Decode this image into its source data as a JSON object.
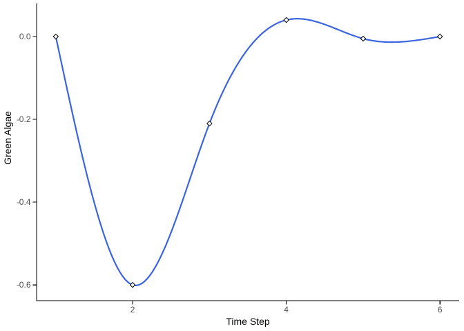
{
  "chart_data": {
    "type": "line",
    "title": "",
    "xlabel": "Time Step",
    "ylabel": "Green Algae",
    "x": [
      1,
      2,
      3,
      4,
      5,
      6
    ],
    "series": [
      {
        "name": "Green Algae",
        "values": [
          0.0,
          -0.6,
          -0.21,
          0.04,
          -0.005,
          0.0
        ]
      }
    ],
    "curve": "natural-cubic-spline",
    "marker": "open-diamond",
    "x_ticks": {
      "values": [
        2,
        4,
        6
      ],
      "labels": [
        "2",
        "4",
        "6"
      ]
    },
    "y_ticks": {
      "values": [
        0.0,
        -0.2,
        -0.4,
        -0.6
      ],
      "labels": [
        "0.0",
        "-0.2",
        "-0.4",
        "-0.6"
      ]
    },
    "xlim": [
      0.75,
      6.25
    ],
    "ylim": [
      -0.638,
      0.08
    ],
    "grid": false,
    "legend": "none",
    "colors": {
      "line": "#3B64E0",
      "marker_fill": "#FFFFFF",
      "marker_stroke": "#000000",
      "axis": "#000000",
      "tick_label": "#4D4D4D",
      "axis_title": "#000000",
      "background": "#FFFFFF"
    }
  }
}
